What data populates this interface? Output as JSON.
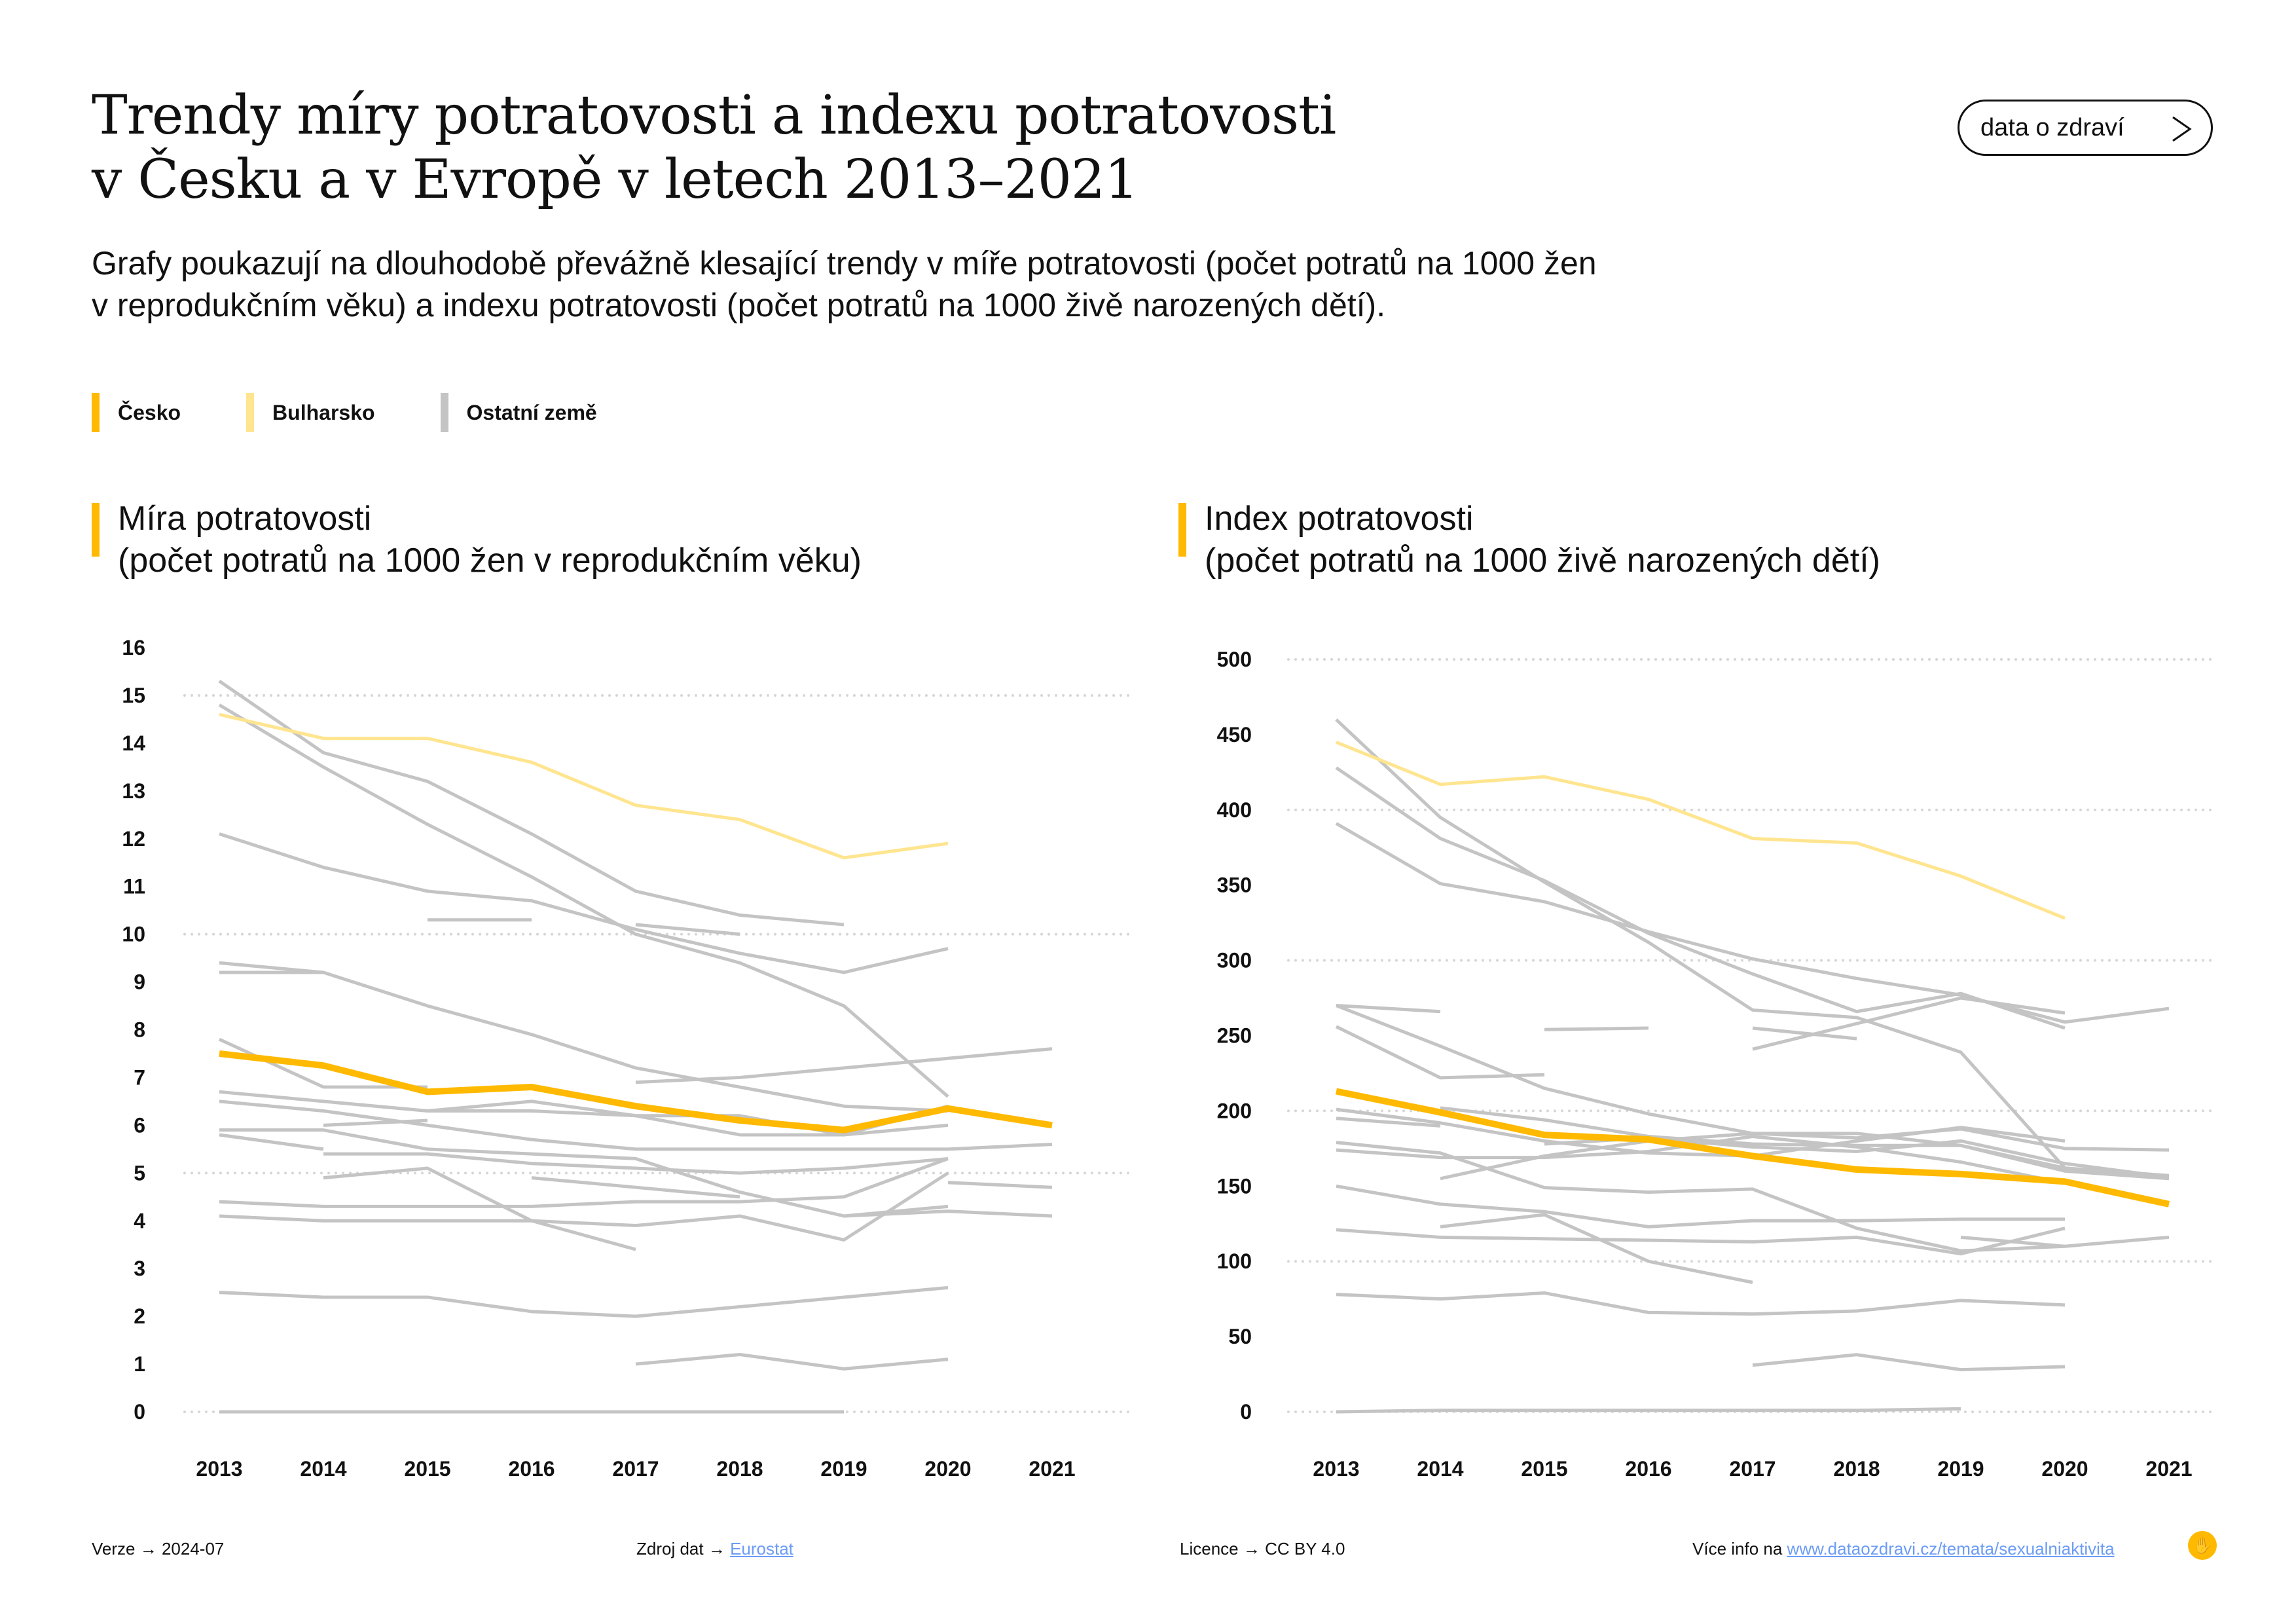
{
  "header": {
    "title_line1": "Trendy míry potratovosti a indexu potratovosti",
    "title_line2": "v Česku a v Evropě v letech 2013–2021",
    "subtitle_line1": "Grafy poukazují na dlouhodobě převážně klesající trendy v míře potratovosti (počet potratů na 1000 žen",
    "subtitle_line2": "v reprodukčním věku) a indexu potratovosti (počet potratů na 1000 živě narozených dětí).",
    "cta_label": "data o zdraví",
    "cta_icon": "chevron-right-icon"
  },
  "legend": [
    {
      "label": "Česko",
      "color": "#FFB900"
    },
    {
      "label": "Bulharsko",
      "color": "#FFE58F"
    },
    {
      "label": "Ostatní země",
      "color": "#C4C4C4"
    }
  ],
  "colors": {
    "cesko": "#FFB900",
    "bulharsko": "#FFE58F",
    "other": "#C4C4C4",
    "grid": "#D6D6D6",
    "link": "#6B9CF5"
  },
  "chart_data": [
    {
      "type": "line",
      "title": "Míra potratovosti",
      "subtitle": "(počet potratů na 1000 žen v reprodukčním věku)",
      "xlabel": "",
      "ylabel": "",
      "x": [
        2013,
        2014,
        2015,
        2016,
        2017,
        2018,
        2019,
        2020,
        2021
      ],
      "y_ticks": [
        0,
        1,
        2,
        3,
        4,
        5,
        6,
        7,
        8,
        9,
        10,
        11,
        12,
        13,
        14,
        15,
        16
      ],
      "gridlines": [
        0,
        5,
        10,
        15
      ],
      "ylim": [
        0,
        16
      ],
      "series": [
        {
          "name": "Ostatní země",
          "kind": "other",
          "values": [
            15.3,
            13.8,
            13.2,
            12.1,
            10.9,
            10.4,
            10.2,
            null,
            null
          ]
        },
        {
          "name": "Ostatní země",
          "kind": "other",
          "values": [
            14.8,
            13.5,
            12.3,
            11.2,
            10.0,
            9.4,
            8.5,
            6.6,
            null
          ]
        },
        {
          "name": "Ostatní země",
          "kind": "other",
          "values": [
            12.1,
            11.4,
            10.9,
            10.7,
            10.1,
            9.6,
            9.2,
            9.7,
            null
          ]
        },
        {
          "name": "Ostatní země",
          "kind": "other",
          "values": [
            null,
            null,
            10.3,
            10.3,
            null,
            null,
            null,
            null,
            null
          ]
        },
        {
          "name": "Ostatní země",
          "kind": "other",
          "values": [
            null,
            null,
            null,
            null,
            10.2,
            10.0,
            null,
            null,
            null
          ]
        },
        {
          "name": "Ostatní země",
          "kind": "other",
          "values": [
            9.4,
            9.2,
            8.5,
            7.9,
            7.2,
            6.8,
            6.4,
            6.3,
            null
          ]
        },
        {
          "name": "Ostatní země",
          "kind": "other",
          "values": [
            9.2,
            9.2,
            null,
            null,
            null,
            null,
            null,
            null,
            null
          ]
        },
        {
          "name": "Ostatní země",
          "kind": "other",
          "values": [
            7.8,
            6.8,
            6.8,
            null,
            null,
            null,
            null,
            null,
            null
          ]
        },
        {
          "name": "Ostatní země",
          "kind": "other",
          "values": [
            null,
            null,
            null,
            null,
            6.9,
            7.0,
            7.2,
            7.4,
            7.6
          ]
        },
        {
          "name": "Ostatní země",
          "kind": "other",
          "values": [
            6.7,
            6.5,
            6.3,
            6.3,
            6.2,
            6.2,
            5.8,
            6.0,
            null
          ]
        },
        {
          "name": "Ostatní země",
          "kind": "other",
          "values": [
            6.5,
            6.3,
            6.0,
            5.7,
            5.5,
            5.5,
            5.5,
            5.5,
            5.6
          ]
        },
        {
          "name": "Ostatní země",
          "kind": "other",
          "values": [
            null,
            null,
            6.3,
            6.5,
            6.2,
            5.8,
            5.8,
            6.4,
            null
          ]
        },
        {
          "name": "Ostatní země",
          "kind": "other",
          "values": [
            null,
            6.0,
            6.1,
            null,
            null,
            null,
            null,
            null,
            null
          ]
        },
        {
          "name": "Ostatní země",
          "kind": "other",
          "values": [
            5.9,
            5.9,
            5.5,
            5.4,
            5.3,
            4.6,
            4.1,
            4.3,
            null
          ]
        },
        {
          "name": "Ostatní země",
          "kind": "other",
          "values": [
            5.8,
            5.5,
            null,
            null,
            null,
            null,
            null,
            null,
            null
          ]
        },
        {
          "name": "Ostatní země",
          "kind": "other",
          "values": [
            null,
            5.4,
            5.4,
            5.2,
            5.1,
            5.0,
            5.1,
            5.3,
            null
          ]
        },
        {
          "name": "Ostatní země",
          "kind": "other",
          "values": [
            null,
            4.9,
            5.1,
            4.0,
            3.4,
            null,
            null,
            null,
            null
          ]
        },
        {
          "name": "Ostatní země",
          "kind": "other",
          "values": [
            null,
            null,
            null,
            4.9,
            4.7,
            4.5,
            null,
            null,
            null
          ]
        },
        {
          "name": "Ostatní země",
          "kind": "other",
          "values": [
            4.4,
            4.3,
            4.3,
            4.3,
            4.4,
            4.4,
            4.5,
            5.3,
            null
          ]
        },
        {
          "name": "Ostatní země",
          "kind": "other",
          "values": [
            4.1,
            4.0,
            4.0,
            4.0,
            3.9,
            4.1,
            3.6,
            5.0,
            null
          ]
        },
        {
          "name": "Ostatní země",
          "kind": "other",
          "values": [
            null,
            null,
            null,
            null,
            null,
            null,
            4.1,
            4.2,
            4.1
          ]
        },
        {
          "name": "Ostatní země",
          "kind": "other",
          "values": [
            null,
            null,
            null,
            null,
            null,
            null,
            null,
            4.8,
            4.7
          ]
        },
        {
          "name": "Ostatní země",
          "kind": "other",
          "values": [
            2.5,
            2.4,
            2.4,
            2.1,
            2.0,
            2.2,
            2.4,
            2.6,
            null
          ]
        },
        {
          "name": "Ostatní země",
          "kind": "other",
          "values": [
            null,
            null,
            null,
            null,
            1.0,
            1.2,
            0.9,
            1.1,
            null
          ]
        },
        {
          "name": "Ostatní země",
          "kind": "other",
          "values": [
            0.0,
            0.0,
            0.0,
            0.0,
            0.0,
            0.0,
            0.0,
            null,
            null
          ]
        },
        {
          "name": "Bulharsko",
          "kind": "bulharsko",
          "values": [
            14.6,
            14.1,
            14.1,
            13.6,
            12.7,
            12.4,
            11.6,
            11.9,
            null
          ]
        },
        {
          "name": "Česko",
          "kind": "cesko",
          "values": [
            7.5,
            7.25,
            6.7,
            6.8,
            6.4,
            6.1,
            5.9,
            6.35,
            6.0
          ]
        }
      ]
    },
    {
      "type": "line",
      "title": "Index potratovosti",
      "subtitle": "(počet potratů na 1000 živě narozených dětí)",
      "xlabel": "",
      "ylabel": "",
      "x": [
        2013,
        2014,
        2015,
        2016,
        2017,
        2018,
        2019,
        2020,
        2021
      ],
      "y_ticks": [
        0,
        50,
        100,
        150,
        200,
        250,
        300,
        350,
        400,
        450,
        500
      ],
      "gridlines": [
        0,
        100,
        200,
        300,
        400,
        500
      ],
      "ylim": [
        0,
        500
      ],
      "series": [
        {
          "name": "Ostatní země",
          "kind": "other",
          "values": [
            460,
            395,
            352,
            312,
            267,
            262,
            239,
            162,
            null
          ]
        },
        {
          "name": "Ostatní země",
          "kind": "other",
          "values": [
            428,
            381,
            353,
            318,
            291,
            266,
            278,
            255,
            null
          ]
        },
        {
          "name": "Ostatní země",
          "kind": "other",
          "values": [
            391,
            351,
            339,
            319,
            301,
            288,
            277,
            259,
            268
          ]
        },
        {
          "name": "Ostatní země",
          "kind": "other",
          "values": [
            270,
            266,
            null,
            null,
            null,
            null,
            null,
            null,
            null
          ]
        },
        {
          "name": "Ostatní země",
          "kind": "other",
          "values": [
            270,
            243,
            215,
            198,
            185,
            185,
            177,
            160,
            155
          ]
        },
        {
          "name": "Ostatní země",
          "kind": "other",
          "values": [
            256,
            222,
            224,
            null,
            null,
            null,
            null,
            null,
            null
          ]
        },
        {
          "name": "Ostatní země",
          "kind": "other",
          "values": [
            null,
            null,
            254,
            255,
            null,
            null,
            null,
            null,
            null
          ]
        },
        {
          "name": "Ostatní země",
          "kind": "other",
          "values": [
            null,
            null,
            null,
            null,
            255,
            248,
            null,
            null,
            null
          ]
        },
        {
          "name": "Ostatní země",
          "kind": "other",
          "values": [
            null,
            null,
            null,
            null,
            241,
            258,
            275,
            265,
            null
          ]
        },
        {
          "name": "Ostatní země",
          "kind": "other",
          "values": [
            201,
            192,
            180,
            172,
            170,
            180,
            189,
            180,
            null
          ]
        },
        {
          "name": "Ostatní země",
          "kind": "other",
          "values": [
            195,
            190,
            null,
            null,
            null,
            null,
            null,
            null,
            null
          ]
        },
        {
          "name": "Ostatní země",
          "kind": "other",
          "values": [
            null,
            202,
            194,
            183,
            178,
            177,
            177,
            162,
            157
          ]
        },
        {
          "name": "Ostatní země",
          "kind": "other",
          "values": [
            179,
            172,
            149,
            146,
            148,
            122,
            107,
            110,
            null
          ]
        },
        {
          "name": "Ostatní země",
          "kind": "other",
          "values": [
            174,
            169,
            169,
            173,
            183,
            176,
            166,
            152,
            null
          ]
        },
        {
          "name": "Ostatní země",
          "kind": "other",
          "values": [
            null,
            155,
            170,
            180,
            185,
            182,
            188,
            175,
            174
          ]
        },
        {
          "name": "Ostatní země",
          "kind": "other",
          "values": [
            null,
            null,
            178,
            182,
            176,
            173,
            180,
            165,
            156
          ]
        },
        {
          "name": "Ostatní země",
          "kind": "other",
          "values": [
            150,
            138,
            133,
            123,
            127,
            127,
            128,
            128,
            null
          ]
        },
        {
          "name": "Ostatní země",
          "kind": "other",
          "values": [
            null,
            123,
            131,
            100,
            86,
            null,
            null,
            null,
            null
          ]
        },
        {
          "name": "Ostatní země",
          "kind": "other",
          "values": [
            121,
            116,
            115,
            114,
            113,
            116,
            105,
            122,
            null
          ]
        },
        {
          "name": "Ostatní země",
          "kind": "other",
          "values": [
            null,
            null,
            null,
            null,
            null,
            null,
            116,
            110,
            116
          ]
        },
        {
          "name": "Ostatní země",
          "kind": "other",
          "values": [
            78,
            75,
            79,
            66,
            65,
            67,
            74,
            71,
            null
          ]
        },
        {
          "name": "Ostatní země",
          "kind": "other",
          "values": [
            null,
            null,
            null,
            null,
            31,
            38,
            28,
            30,
            null
          ]
        },
        {
          "name": "Ostatní země",
          "kind": "other",
          "values": [
            0,
            1,
            1,
            1,
            1,
            1,
            2,
            null,
            null
          ]
        },
        {
          "name": "Bulharsko",
          "kind": "bulharsko",
          "values": [
            445,
            417,
            422,
            407,
            381,
            378,
            356,
            328,
            null
          ]
        },
        {
          "name": "Česko",
          "kind": "cesko",
          "values": [
            213,
            199,
            184,
            181,
            170,
            161,
            158,
            153,
            138
          ]
        }
      ]
    }
  ],
  "footer": {
    "version_label": "Verze",
    "version_value": "2024-07",
    "source_label": "Zdroj dat",
    "source_link": "Eurostat",
    "license_label": "Licence",
    "license_value": "CC BY 4.0",
    "more_info_label": "Více info na",
    "more_info_link": "www.dataozdravi.cz/temata/sexualniaktivita",
    "arrow": "→",
    "logo_icon": "hand-logo-icon"
  }
}
